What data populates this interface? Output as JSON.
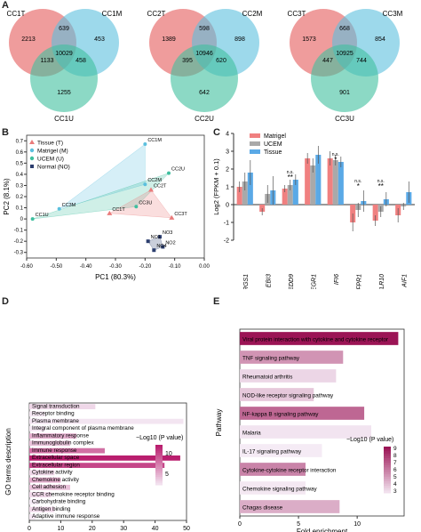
{
  "panels": {
    "A": "A",
    "B": "B",
    "C": "C",
    "D": "D",
    "E": "E"
  },
  "colors": {
    "tissue": "#ea7b7b",
    "matrigel": "#5bc0de",
    "uceme": "#3fbf9f",
    "normal": "#2c3e6e"
  },
  "chart_data": [
    {
      "type": "venn",
      "panel": "A",
      "diagrams": [
        {
          "sets": [
            "CC1T",
            "CC1M",
            "CC1U"
          ],
          "only_t": "2213",
          "only_m": "453",
          "only_u": "1255",
          "tm": "639",
          "tu": "1133",
          "mu": "458",
          "tmu": "10029"
        },
        {
          "sets": [
            "CC2T",
            "CC2M",
            "CC2U"
          ],
          "only_t": "1389",
          "only_m": "898",
          "only_u": "642",
          "tm": "598",
          "tu": "395",
          "mu": "620",
          "tmu": "10946"
        },
        {
          "sets": [
            "CC3T",
            "CC3M",
            "CC3U"
          ],
          "only_t": "1573",
          "only_m": "854",
          "only_u": "901",
          "tm": "668",
          "tu": "447",
          "mu": "744",
          "tmu": "10925"
        }
      ]
    },
    {
      "type": "scatter",
      "panel": "B",
      "xlabel": "PC1 (80.3%)",
      "ylabel": "PC2 (8.1%)",
      "xlim": [
        -0.6,
        0.0
      ],
      "ylim": [
        -0.35,
        0.75
      ],
      "xticks": [
        "-0.60",
        "-0.50",
        "-0.40",
        "-0.30",
        "-0.20",
        "-0.10",
        "0.00"
      ],
      "yticks": [
        "-0.3",
        "-0.2",
        "-0.1",
        "0",
        "0.1",
        "0.2",
        "0.3",
        "0.4",
        "0.5",
        "0.6",
        "0.7"
      ],
      "legend": [
        "Tissue (T)",
        "Matrigel (M)",
        "UCEM (U)",
        "Normal (NO)"
      ],
      "points": [
        {
          "label": "CC1M",
          "x": -0.2,
          "y": 0.67,
          "group": "matrigel"
        },
        {
          "label": "CC2U",
          "x": -0.12,
          "y": 0.41,
          "group": "uceme"
        },
        {
          "label": "CC2M",
          "x": -0.2,
          "y": 0.31,
          "group": "matrigel"
        },
        {
          "label": "CC2T",
          "x": -0.18,
          "y": 0.26,
          "group": "tissue"
        },
        {
          "label": "CC3U",
          "x": -0.23,
          "y": 0.11,
          "group": "uceme"
        },
        {
          "label": "CC3M",
          "x": -0.49,
          "y": 0.09,
          "group": "matrigel"
        },
        {
          "label": "CC1T",
          "x": -0.32,
          "y": 0.05,
          "group": "tissue"
        },
        {
          "label": "CC3T",
          "x": -0.11,
          "y": 0.01,
          "group": "tissue"
        },
        {
          "label": "CC1U",
          "x": -0.58,
          "y": 0.0,
          "group": "uceme"
        },
        {
          "label": "NO3",
          "x": -0.15,
          "y": -0.16,
          "group": "normal"
        },
        {
          "label": "NO1",
          "x": -0.19,
          "y": -0.2,
          "group": "normal"
        },
        {
          "label": "NO2",
          "x": -0.14,
          "y": -0.25,
          "group": "normal"
        },
        {
          "label": "NO4",
          "x": -0.17,
          "y": -0.28,
          "group": "normal"
        }
      ]
    },
    {
      "type": "bar",
      "panel": "C",
      "ylabel": "Log2 (FPKM + 0.1)",
      "ylim": [
        -2,
        4
      ],
      "yticks": [
        "-2",
        "-1",
        "0",
        "1",
        "2",
        "3",
        "4"
      ],
      "categories": [
        "RGS1",
        "EBI3",
        "NEDD9",
        "EGR1",
        "IFI6",
        "FPR1",
        "TLR10",
        "AIF1"
      ],
      "series": [
        {
          "name": "Matrigel",
          "color": "#f08080",
          "values": [
            1.0,
            -0.4,
            0.9,
            2.6,
            2.6,
            -1.0,
            -0.9,
            -0.6
          ],
          "errors": [
            0.3,
            0.2,
            0.2,
            0.3,
            0.4,
            0.5,
            0.3,
            0.4
          ]
        },
        {
          "name": "UCEM",
          "color": "#a9a9a9",
          "values": [
            1.3,
            0.6,
            1.1,
            2.2,
            2.5,
            -0.3,
            -0.4,
            -0.1
          ],
          "errors": [
            0.5,
            0.5,
            0.3,
            0.4,
            0.3,
            0.4,
            0.3,
            0.2
          ]
        },
        {
          "name": "Tissue",
          "color": "#5aa9e6",
          "values": [
            1.8,
            0.8,
            1.4,
            2.8,
            2.4,
            0.2,
            0.3,
            0.7
          ],
          "errors": [
            0.7,
            0.8,
            0.3,
            0.5,
            0.3,
            0.6,
            0.4,
            0.6
          ]
        }
      ],
      "annotations": [
        {
          "text": "**",
          "cat": 2
        },
        {
          "text": "n.s.",
          "cat": 2
        },
        {
          "text": "*",
          "cat": 4
        },
        {
          "text": "n.s.",
          "cat": 4
        },
        {
          "text": "*",
          "cat": 5
        },
        {
          "text": "n.s.",
          "cat": 5
        },
        {
          "text": "**",
          "cat": 6
        },
        {
          "text": "n.s.",
          "cat": 6
        }
      ]
    },
    {
      "type": "bar",
      "panel": "D",
      "orientation": "horizontal",
      "xlabel": "Count",
      "ylabel": "GO terms description",
      "xlim": [
        0,
        50
      ],
      "xticks": [
        "0",
        "10",
        "20",
        "30",
        "40",
        "50"
      ],
      "colorbar": {
        "title": "−Log10 (P value)",
        "ticks": [
          "10",
          "5"
        ]
      },
      "categories": [
        "Signal transduction",
        "Receptor binding",
        "Plasma membrane",
        "Integral component of plasma membrane",
        "Inflammatory response",
        "Immunoglobulin complex",
        "Immune response",
        "Extracellular space",
        "Extracellular region",
        "Cytokine activity",
        "Chemokine activity",
        "Cell adhesion",
        "CCR chemokine receptor binding",
        "Carbohydrate binding",
        "Antigen binding",
        "Adaptive immune response"
      ],
      "values": [
        21,
        5,
        49,
        5,
        15,
        13,
        24,
        48,
        43,
        8,
        10,
        13,
        7,
        3,
        8,
        2
      ],
      "color_values": [
        2,
        1.2,
        1.3,
        1.2,
        4,
        3,
        7,
        11,
        9,
        2,
        4,
        3,
        2,
        1,
        2,
        1.2
      ]
    },
    {
      "type": "bar",
      "panel": "E",
      "orientation": "horizontal",
      "xlabel": "Fold enrichment",
      "ylabel": "Pathway",
      "xlim": [
        0,
        14
      ],
      "xticks": [
        "0",
        "5",
        "10"
      ],
      "colorbar": {
        "title": "−Log10 (P value)",
        "ticks": [
          "9",
          "8",
          "7",
          "6",
          "5",
          "4",
          "3"
        ]
      },
      "categories": [
        "Viral protein interaction with cytokine and cytokine receptor",
        "TNF signaling pathway",
        "Rheumatoid arthritis",
        "NOD-like receptor signaling pathway",
        "NF-kappa B signaling pathway",
        "Malaria",
        "IL-17 signaling pathway",
        "Cytokine-cytokine receptor interaction",
        "Chemokine signaling pathway",
        "Chagas disease"
      ],
      "values": [
        13.5,
        8.8,
        8.2,
        6.3,
        10.6,
        11.2,
        7.0,
        5.6,
        5.6,
        8.5
      ],
      "color_values": [
        9.2,
        5.5,
        3.6,
        4.0,
        6.8,
        3.2,
        3.0,
        6.0,
        3.1,
        4.8
      ]
    }
  ]
}
